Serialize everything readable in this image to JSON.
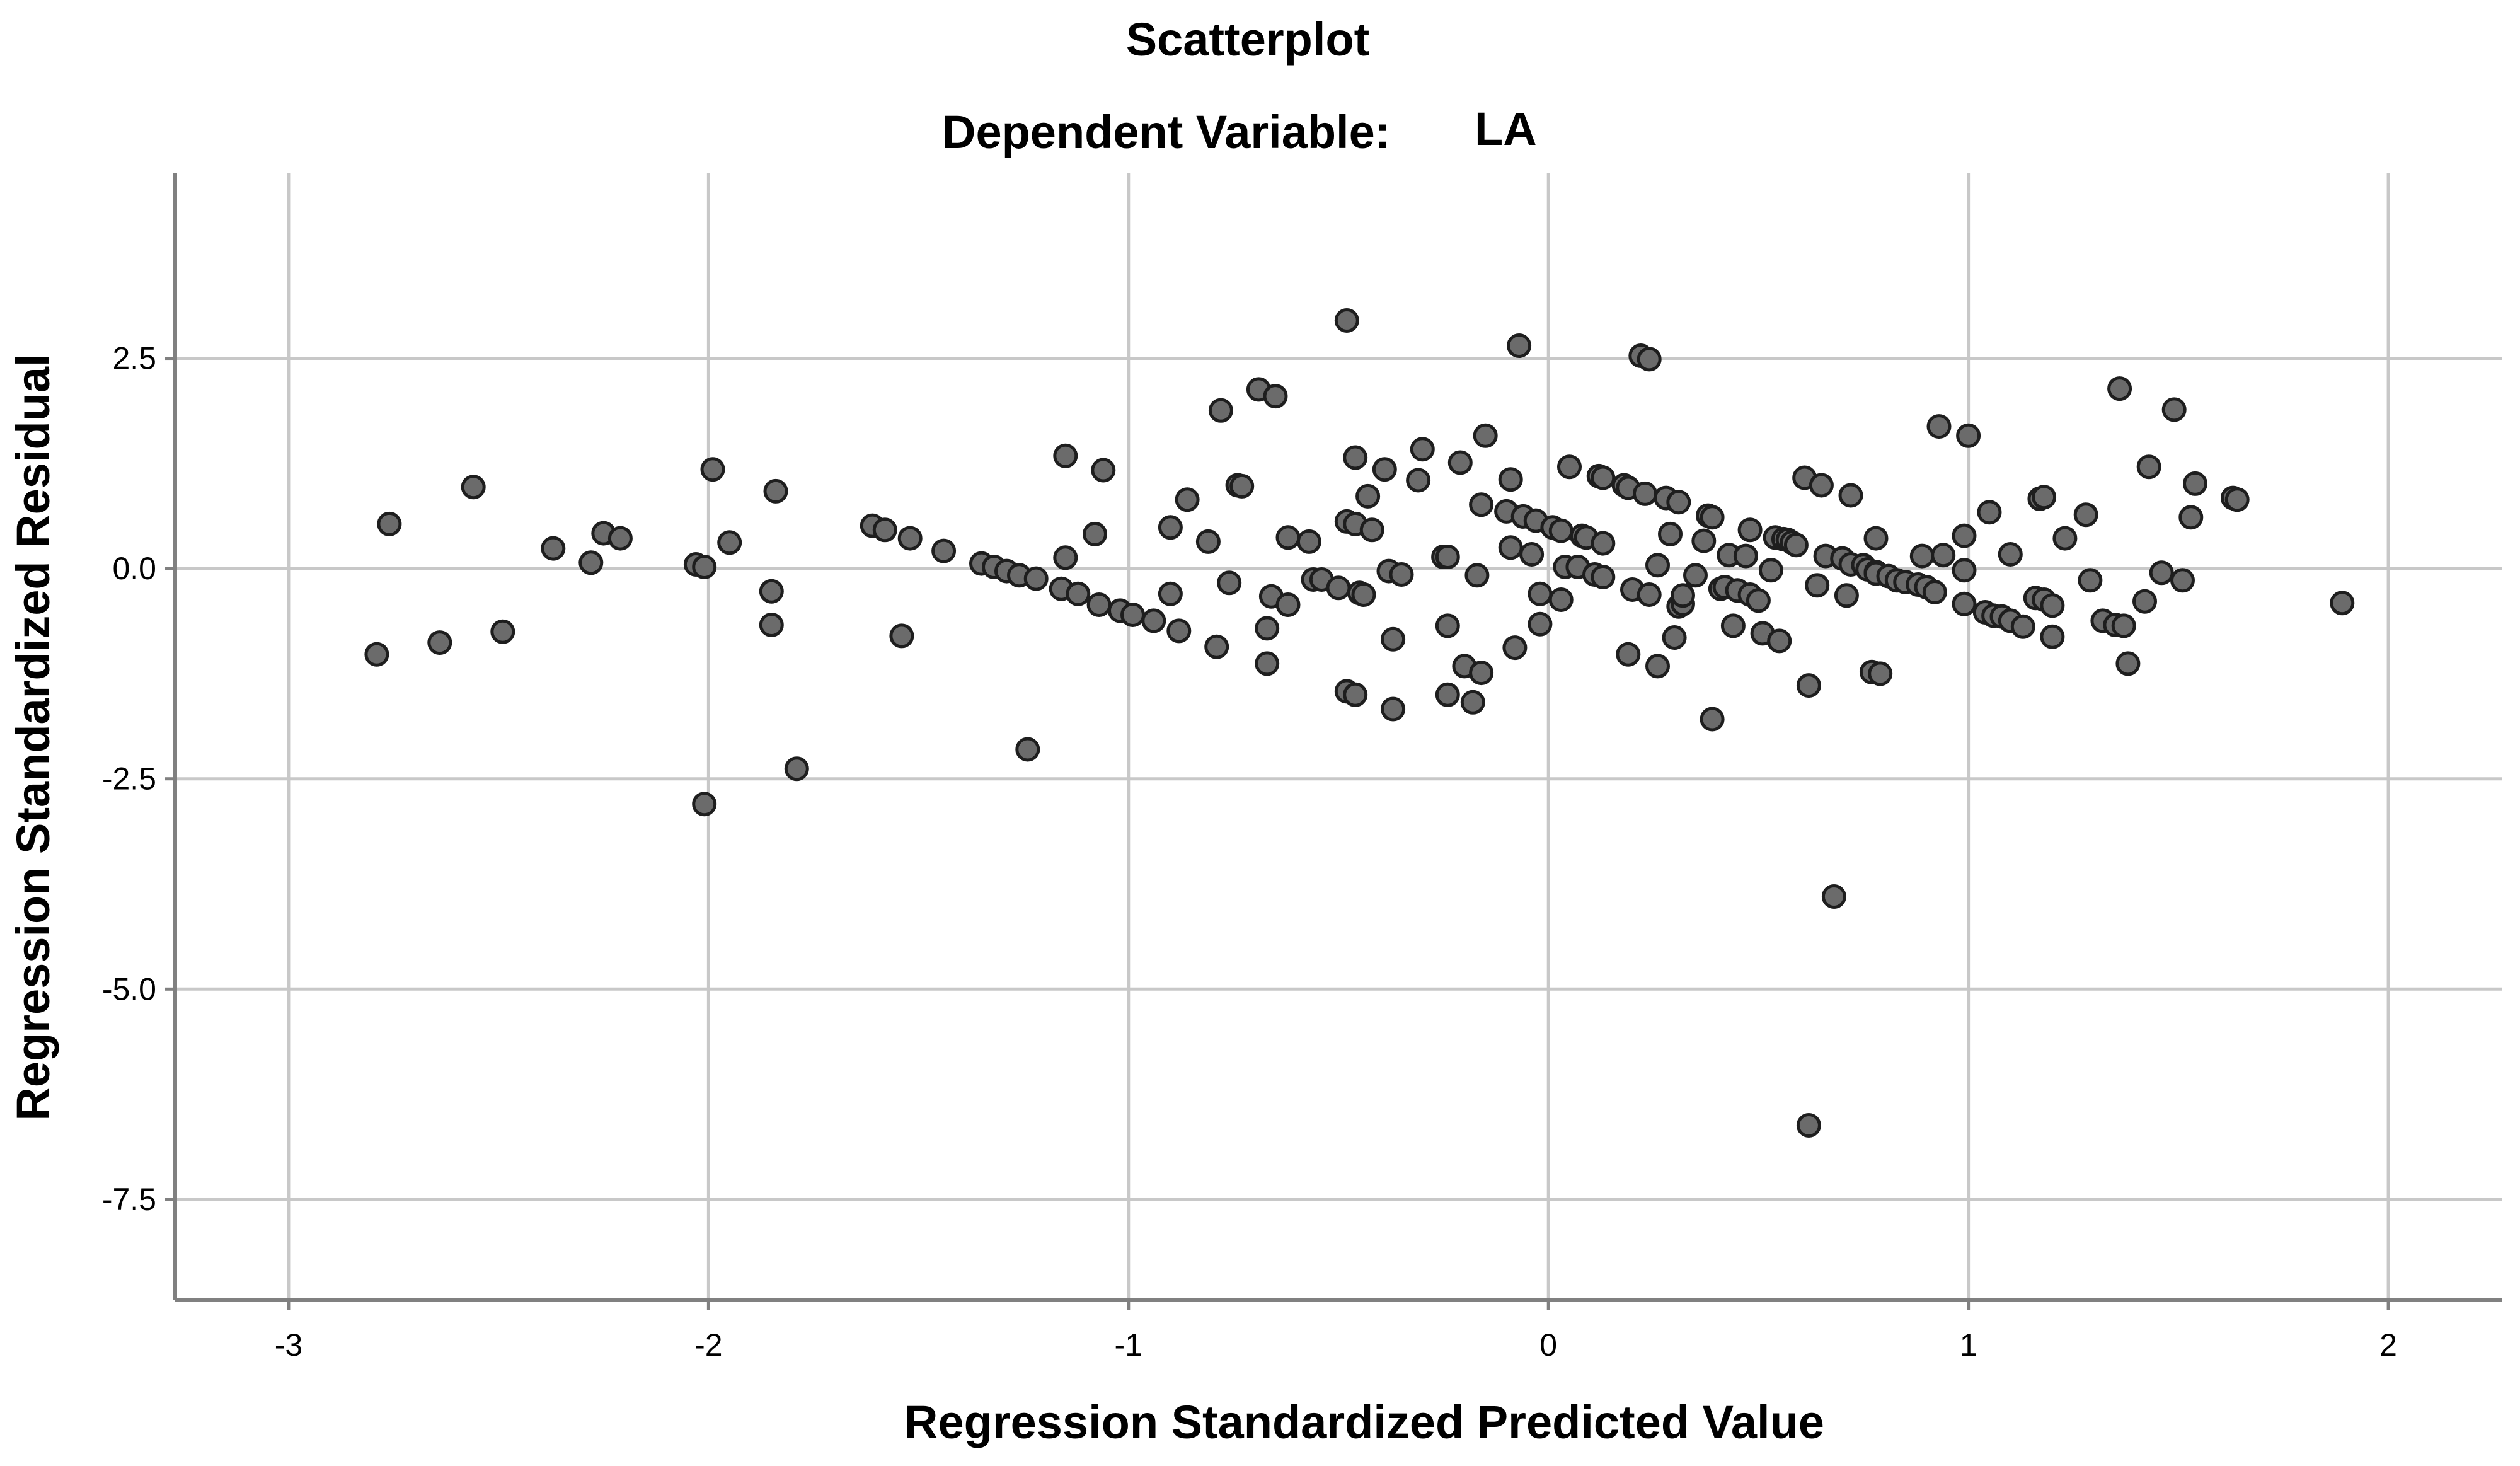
{
  "chart_data": {
    "type": "scatter",
    "title": "Scatterplot",
    "subtitle_label": "Dependent Variable:",
    "subtitle_value": "LA",
    "xlabel": "Regression Standardized Predicted Value",
    "ylabel": "Regression Standardized Residual",
    "xlim": [
      -3.27,
      2.27
    ],
    "ylim": [
      -8.7,
      4.7
    ],
    "xticks": [
      -3,
      -2,
      -1,
      0,
      1,
      2
    ],
    "xtick_labels": [
      "-3",
      "-2",
      "-1",
      "0",
      "1",
      "2"
    ],
    "yticks": [
      2.5,
      0.0,
      -2.5,
      -5.0,
      -7.5
    ],
    "ytick_labels": [
      "2.5",
      "0.0",
      "-2.5",
      "-5.0",
      "-7.5"
    ],
    "grid": true,
    "colors": {
      "marker_fill": "#6b6b6b",
      "marker_edge": "#1e1e1e",
      "grid": "#c8c8c8",
      "axis": "#808080"
    },
    "points": [
      [
        -2.79,
        -1.02
      ],
      [
        -2.76,
        0.53
      ],
      [
        -2.64,
        -0.88
      ],
      [
        -2.56,
        0.97
      ],
      [
        -2.49,
        -0.75
      ],
      [
        -2.37,
        0.24
      ],
      [
        -2.28,
        0.07
      ],
      [
        -2.25,
        0.42
      ],
      [
        -2.21,
        0.36
      ],
      [
        -2.03,
        0.05
      ],
      [
        -2.01,
        0.02
      ],
      [
        -2.01,
        -2.8
      ],
      [
        -1.99,
        1.18
      ],
      [
        -1.95,
        0.31
      ],
      [
        -1.84,
        0.92
      ],
      [
        -1.85,
        -0.27
      ],
      [
        -1.85,
        -0.67
      ],
      [
        -1.79,
        -2.38
      ],
      [
        -1.61,
        0.51
      ],
      [
        -1.58,
        0.46
      ],
      [
        -1.54,
        -0.8
      ],
      [
        -1.52,
        0.36
      ],
      [
        -1.44,
        0.21
      ],
      [
        -1.35,
        0.06
      ],
      [
        -1.32,
        0.02
      ],
      [
        -1.29,
        -0.03
      ],
      [
        -1.26,
        -0.08
      ],
      [
        -1.22,
        -0.12
      ],
      [
        -1.24,
        -2.15
      ],
      [
        -1.16,
        -0.24
      ],
      [
        -1.15,
        0.13
      ],
      [
        -1.15,
        1.34
      ],
      [
        -1.12,
        -0.3
      ],
      [
        -1.08,
        0.41
      ],
      [
        -1.07,
        -0.43
      ],
      [
        -1.06,
        1.17
      ],
      [
        -1.02,
        -0.5
      ],
      [
        -0.99,
        -0.55
      ],
      [
        -0.94,
        -0.62
      ],
      [
        -0.9,
        0.49
      ],
      [
        -0.9,
        -0.3
      ],
      [
        -0.88,
        -0.74
      ],
      [
        -0.86,
        0.82
      ],
      [
        -0.81,
        0.32
      ],
      [
        -0.79,
        -0.93
      ],
      [
        -0.78,
        1.88
      ],
      [
        -0.76,
        -0.17
      ],
      [
        -0.74,
        0.99
      ],
      [
        -0.73,
        0.98
      ],
      [
        -0.69,
        2.13
      ],
      [
        -0.67,
        -1.13
      ],
      [
        -0.67,
        -0.71
      ],
      [
        -0.66,
        -0.33
      ],
      [
        -0.65,
        2.05
      ],
      [
        -0.62,
        0.37
      ],
      [
        -0.62,
        -0.43
      ],
      [
        -0.57,
        0.32
      ],
      [
        -0.56,
        -0.13
      ],
      [
        -0.54,
        -0.13
      ],
      [
        -0.5,
        -0.23
      ],
      [
        -0.48,
        2.95
      ],
      [
        -0.48,
        0.56
      ],
      [
        -0.48,
        -1.46
      ],
      [
        -0.46,
        0.53
      ],
      [
        -0.46,
        -1.5
      ],
      [
        -0.46,
        1.32
      ],
      [
        -0.45,
        -0.29
      ],
      [
        -0.44,
        -0.31
      ],
      [
        -0.43,
        0.86
      ],
      [
        -0.42,
        0.46
      ],
      [
        -0.39,
        1.18
      ],
      [
        -0.38,
        -0.03
      ],
      [
        -0.37,
        -0.84
      ],
      [
        -0.37,
        -1.67
      ],
      [
        -0.35,
        -0.07
      ],
      [
        -0.31,
        1.05
      ],
      [
        -0.3,
        1.42
      ],
      [
        -0.25,
        0.14
      ],
      [
        -0.24,
        0.14
      ],
      [
        -0.24,
        -0.68
      ],
      [
        -0.24,
        -1.5
      ],
      [
        -0.21,
        1.26
      ],
      [
        -0.2,
        -1.16
      ],
      [
        -0.18,
        -1.59
      ],
      [
        -0.17,
        -0.08
      ],
      [
        -0.16,
        0.76
      ],
      [
        -0.16,
        -1.24
      ],
      [
        -0.15,
        1.58
      ],
      [
        -0.1,
        0.68
      ],
      [
        -0.09,
        1.06
      ],
      [
        -0.09,
        0.25
      ],
      [
        -0.08,
        -0.94
      ],
      [
        -0.07,
        2.65
      ],
      [
        -0.06,
        0.62
      ],
      [
        -0.04,
        0.17
      ],
      [
        -0.03,
        0.57
      ],
      [
        -0.02,
        -0.66
      ],
      [
        -0.02,
        -0.3
      ],
      [
        0.01,
        0.49
      ],
      [
        0.03,
        0.45
      ],
      [
        0.03,
        -0.37
      ],
      [
        0.04,
        0.02
      ],
      [
        0.05,
        1.21
      ],
      [
        0.07,
        0.02
      ],
      [
        0.08,
        0.39
      ],
      [
        0.09,
        0.37
      ],
      [
        0.11,
        -0.07
      ],
      [
        0.12,
        1.1
      ],
      [
        0.13,
        1.08
      ],
      [
        0.13,
        0.3
      ],
      [
        0.13,
        -0.1
      ],
      [
        0.18,
        0.99
      ],
      [
        0.19,
        0.96
      ],
      [
        0.19,
        -1.02
      ],
      [
        0.2,
        -0.25
      ],
      [
        0.22,
        2.53
      ],
      [
        0.23,
        0.89
      ],
      [
        0.24,
        2.49
      ],
      [
        0.24,
        -0.31
      ],
      [
        0.26,
        0.04
      ],
      [
        0.26,
        -1.16
      ],
      [
        0.28,
        0.84
      ],
      [
        0.29,
        0.41
      ],
      [
        0.3,
        -0.82
      ],
      [
        0.31,
        0.79
      ],
      [
        0.31,
        -0.45
      ],
      [
        0.32,
        -0.42
      ],
      [
        0.32,
        -0.32
      ],
      [
        0.35,
        -0.08
      ],
      [
        0.37,
        0.33
      ],
      [
        0.38,
        0.63
      ],
      [
        0.39,
        0.61
      ],
      [
        0.39,
        -1.79
      ],
      [
        0.41,
        -0.24
      ],
      [
        0.42,
        -0.22
      ],
      [
        0.43,
        0.16
      ],
      [
        0.44,
        -0.68
      ],
      [
        0.45,
        -0.26
      ],
      [
        0.47,
        0.15
      ],
      [
        0.48,
        0.46
      ],
      [
        0.48,
        -0.31
      ],
      [
        0.5,
        -0.38
      ],
      [
        0.51,
        -0.77
      ],
      [
        0.53,
        -0.02
      ],
      [
        0.54,
        0.37
      ],
      [
        0.55,
        -0.86
      ],
      [
        0.56,
        0.35
      ],
      [
        0.57,
        0.34
      ],
      [
        0.58,
        0.31
      ],
      [
        0.59,
        0.28
      ],
      [
        0.61,
        1.08
      ],
      [
        0.62,
        -1.39
      ],
      [
        0.62,
        -6.62
      ],
      [
        0.64,
        -0.2
      ],
      [
        0.65,
        0.99
      ],
      [
        0.66,
        0.15
      ],
      [
        0.68,
        -3.9
      ],
      [
        0.7,
        0.12
      ],
      [
        0.71,
        -0.32
      ],
      [
        0.72,
        0.05
      ],
      [
        0.72,
        0.87
      ],
      [
        0.75,
        0.04
      ],
      [
        0.76,
        -0.01
      ],
      [
        0.77,
        -1.23
      ],
      [
        0.78,
        -0.04
      ],
      [
        0.78,
        -0.06
      ],
      [
        0.78,
        0.36
      ],
      [
        0.79,
        -1.25
      ],
      [
        0.81,
        -0.09
      ],
      [
        0.83,
        -0.14
      ],
      [
        0.85,
        -0.16
      ],
      [
        0.88,
        -0.19
      ],
      [
        0.89,
        0.15
      ],
      [
        0.9,
        -0.22
      ],
      [
        0.92,
        -0.28
      ],
      [
        0.93,
        1.69
      ],
      [
        0.94,
        0.16
      ],
      [
        0.99,
        -0.42
      ],
      [
        0.99,
        -0.02
      ],
      [
        0.99,
        0.39
      ],
      [
        1.0,
        1.58
      ],
      [
        1.04,
        -0.52
      ],
      [
        1.05,
        0.67
      ],
      [
        1.06,
        -0.56
      ],
      [
        1.08,
        -0.57
      ],
      [
        1.1,
        0.17
      ],
      [
        1.1,
        -0.62
      ],
      [
        1.13,
        -0.69
      ],
      [
        1.16,
        -0.35
      ],
      [
        1.17,
        0.83
      ],
      [
        1.18,
        0.85
      ],
      [
        1.18,
        -0.37
      ],
      [
        1.2,
        -0.44
      ],
      [
        1.2,
        -0.81
      ],
      [
        1.23,
        0.36
      ],
      [
        1.28,
        0.64
      ],
      [
        1.29,
        -0.14
      ],
      [
        1.32,
        -0.62
      ],
      [
        1.35,
        -0.67
      ],
      [
        1.36,
        2.14
      ],
      [
        1.37,
        -0.68
      ],
      [
        1.38,
        -1.13
      ],
      [
        1.42,
        -0.39
      ],
      [
        1.43,
        1.21
      ],
      [
        1.46,
        -0.05
      ],
      [
        1.49,
        1.89
      ],
      [
        1.51,
        -0.14
      ],
      [
        1.53,
        0.61
      ],
      [
        1.54,
        1.01
      ],
      [
        1.63,
        0.84
      ],
      [
        1.64,
        0.82
      ],
      [
        1.89,
        -0.41
      ]
    ]
  }
}
